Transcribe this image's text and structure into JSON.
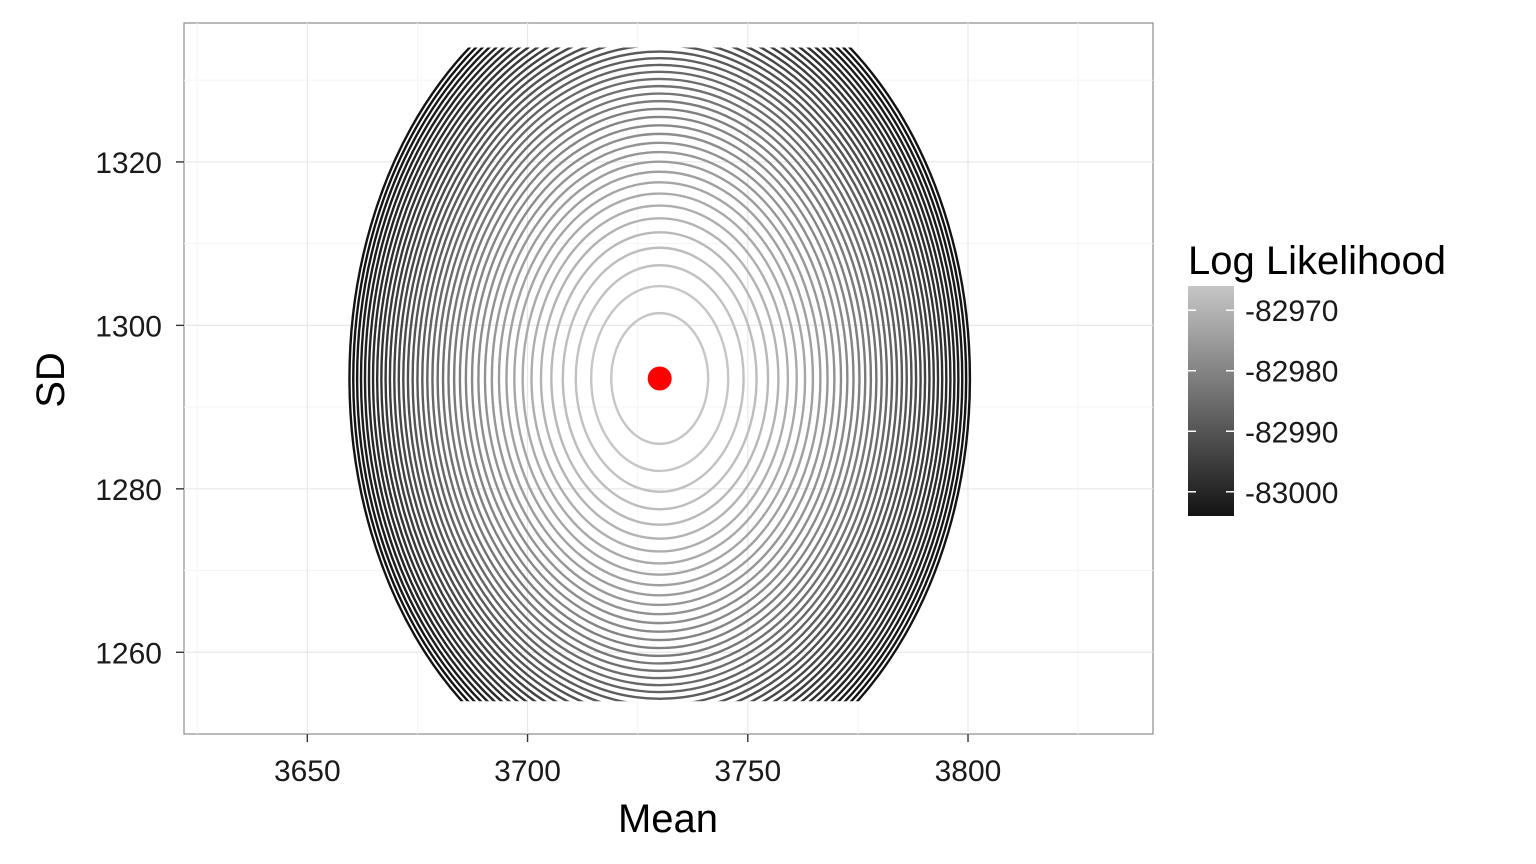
{
  "chart_data": {
    "type": "contour",
    "title": "",
    "xlabel": "Mean",
    "ylabel": "SD",
    "xlim": [
      3622,
      3842
    ],
    "ylim": [
      1250,
      1337
    ],
    "x_ticks": [
      3650,
      3700,
      3750,
      3800
    ],
    "y_ticks": [
      1260,
      1280,
      1300,
      1320
    ],
    "grid_range": {
      "x": [
        3630,
        3830
      ],
      "y": [
        1254,
        1334
      ]
    },
    "max_likelihood_point": {
      "mean": 3730,
      "sd": 1293.5,
      "color": "#ff0000"
    },
    "contour_levels": {
      "outermost": -83005,
      "innermost": -82965,
      "step": 1,
      "innermost_ellipse_halfwidth_mean": 11,
      "innermost_ellipse_halfheight_sd": 8
    },
    "legend": {
      "title": "Log Likelihood",
      "position": "right",
      "labels": [
        "-82970",
        "-82980",
        "-82990",
        "-83000"
      ],
      "values": [
        -82970,
        -82980,
        -82990,
        -83000
      ],
      "range": [
        -83004,
        -82966
      ],
      "color_low": "#131313",
      "color_high": "#c6c6c6"
    }
  }
}
